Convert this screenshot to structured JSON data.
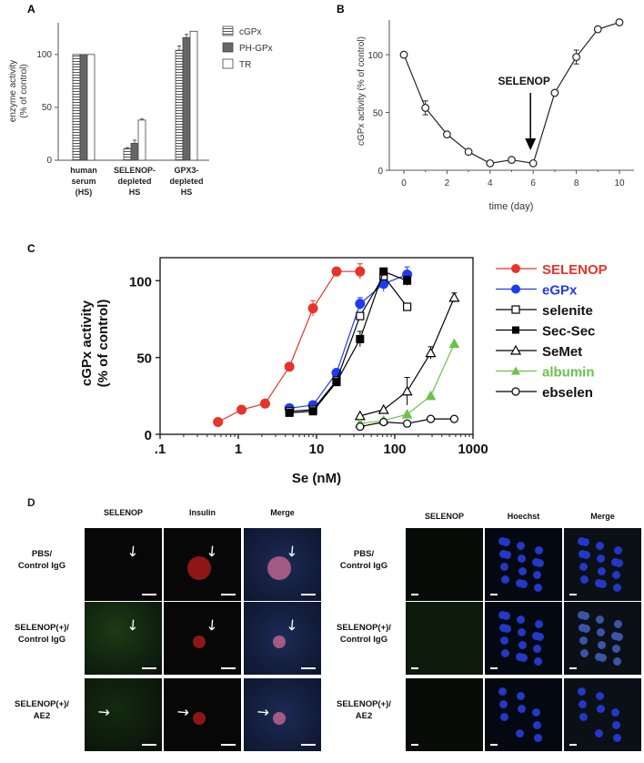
{
  "chart_data": [
    {
      "panel": "A",
      "type": "bar",
      "ylabel": "enzyme activity\n(% of control)",
      "ylim": [
        0,
        130
      ],
      "yticks": [
        0,
        50,
        100
      ],
      "categories": [
        "human\nserum\n(HS)",
        "SELENOP-\ndepleted\nHS",
        "GPX3-\ndepleted\nHS"
      ],
      "series": [
        {
          "name": "cGPx",
          "values": [
            100,
            11,
            104
          ],
          "errors": [
            0,
            1,
            4
          ],
          "pattern": "hatch"
        },
        {
          "name": "PH-GPx",
          "values": [
            100,
            16,
            116
          ],
          "errors": [
            0,
            3,
            3
          ],
          "color": "#666666"
        },
        {
          "name": "TR",
          "values": [
            100,
            38,
            122
          ],
          "errors": [
            0,
            1,
            0
          ],
          "color": "#ffffff"
        }
      ],
      "legend": "top-right"
    },
    {
      "panel": "B",
      "type": "line",
      "xlabel": "time (day)",
      "ylabel": "cGPx activity (% of control)",
      "xlim": [
        0,
        11
      ],
      "ylim": [
        0,
        130
      ],
      "xticks": [
        0,
        2,
        4,
        6,
        8,
        10
      ],
      "yticks": [
        0,
        50,
        100
      ],
      "x": [
        0,
        1,
        2,
        3,
        4,
        5,
        6,
        7,
        8,
        9,
        10
      ],
      "values": [
        100,
        54,
        31,
        16,
        6,
        9,
        6,
        67,
        98,
        122,
        128
      ],
      "errors": [
        0,
        6,
        0,
        0,
        0,
        0,
        0,
        0,
        6,
        0,
        0
      ],
      "annotation": {
        "text": "SELENOP",
        "x": 6
      }
    },
    {
      "panel": "C",
      "type": "line",
      "xlabel": "Se (nM)",
      "ylabel": "cGPx activity\n(% of control)",
      "xscale": "log",
      "xlim": [
        0.1,
        1000
      ],
      "ylim": [
        0,
        115
      ],
      "xticks": [
        ".1",
        "1",
        "10",
        "100",
        "1000"
      ],
      "yticks": [
        0,
        50,
        100
      ],
      "legend": "right",
      "series": [
        {
          "name": "SELENOP",
          "color": "#e8332a",
          "marker": "filled-circle",
          "x": [
            0.55,
            1.1,
            2.2,
            4.5,
            9,
            18,
            36
          ],
          "y": [
            8,
            16,
            20,
            44,
            82,
            106,
            106
          ],
          "err": [
            0,
            2,
            0,
            0,
            5,
            0,
            5
          ]
        },
        {
          "name": "eGPx",
          "color": "#1f3bf0",
          "marker": "filled-circle",
          "x": [
            4.5,
            9,
            18,
            36,
            72,
            144
          ],
          "y": [
            17,
            19,
            40,
            85,
            98,
            104
          ],
          "err": [
            0,
            0,
            0,
            4,
            5,
            5
          ]
        },
        {
          "name": "selenite",
          "color": "#000000",
          "marker": "open-square",
          "x": [
            4.5,
            9,
            18,
            36,
            72,
            144
          ],
          "y": [
            15,
            16,
            35,
            77,
            103,
            83
          ],
          "err": [
            0,
            0,
            0,
            0,
            0,
            0
          ]
        },
        {
          "name": "Sec-Sec",
          "color": "#000000",
          "marker": "filled-square",
          "x": [
            4.5,
            9,
            18,
            36,
            72,
            144
          ],
          "y": [
            14,
            15,
            34,
            62,
            106,
            100
          ],
          "err": [
            0,
            0,
            0,
            5,
            0,
            3
          ]
        },
        {
          "name": "SeMet",
          "color": "#000000",
          "marker": "open-triangle",
          "x": [
            36,
            72,
            144,
            288,
            576
          ],
          "y": [
            12,
            16,
            28,
            53,
            89
          ],
          "err": [
            0,
            0,
            9,
            4,
            3
          ]
        },
        {
          "name": "albumin",
          "color": "#6cc04a",
          "marker": "filled-triangle",
          "x": [
            36,
            72,
            144,
            288,
            576
          ],
          "y": [
            7,
            9,
            13,
            25,
            59
          ],
          "err": [
            0,
            0,
            0,
            0,
            0
          ]
        },
        {
          "name": "ebselen",
          "color": "#000000",
          "marker": "open-circle",
          "x": [
            36,
            72,
            144,
            288,
            576
          ],
          "y": [
            5,
            8,
            7,
            10,
            10
          ],
          "err": [
            0,
            0,
            0,
            0,
            0
          ]
        }
      ]
    }
  ],
  "panel_d": {
    "letter": "D",
    "left": {
      "columns": [
        "SELENOP",
        "Insulin",
        "Merge"
      ],
      "rows": [
        "PBS/\nControl IgG",
        "SELENOP(+)/\nControl IgG",
        "SELENOP(+)/\nAE2"
      ]
    },
    "right": {
      "columns": [
        "SELENOP",
        "Hoechst",
        "Merge"
      ],
      "rows": [
        "PBS/\nControl IgG",
        "SELENOP(+)/\nControl IgG",
        "SELENOP(+)/\nAE2"
      ]
    }
  }
}
